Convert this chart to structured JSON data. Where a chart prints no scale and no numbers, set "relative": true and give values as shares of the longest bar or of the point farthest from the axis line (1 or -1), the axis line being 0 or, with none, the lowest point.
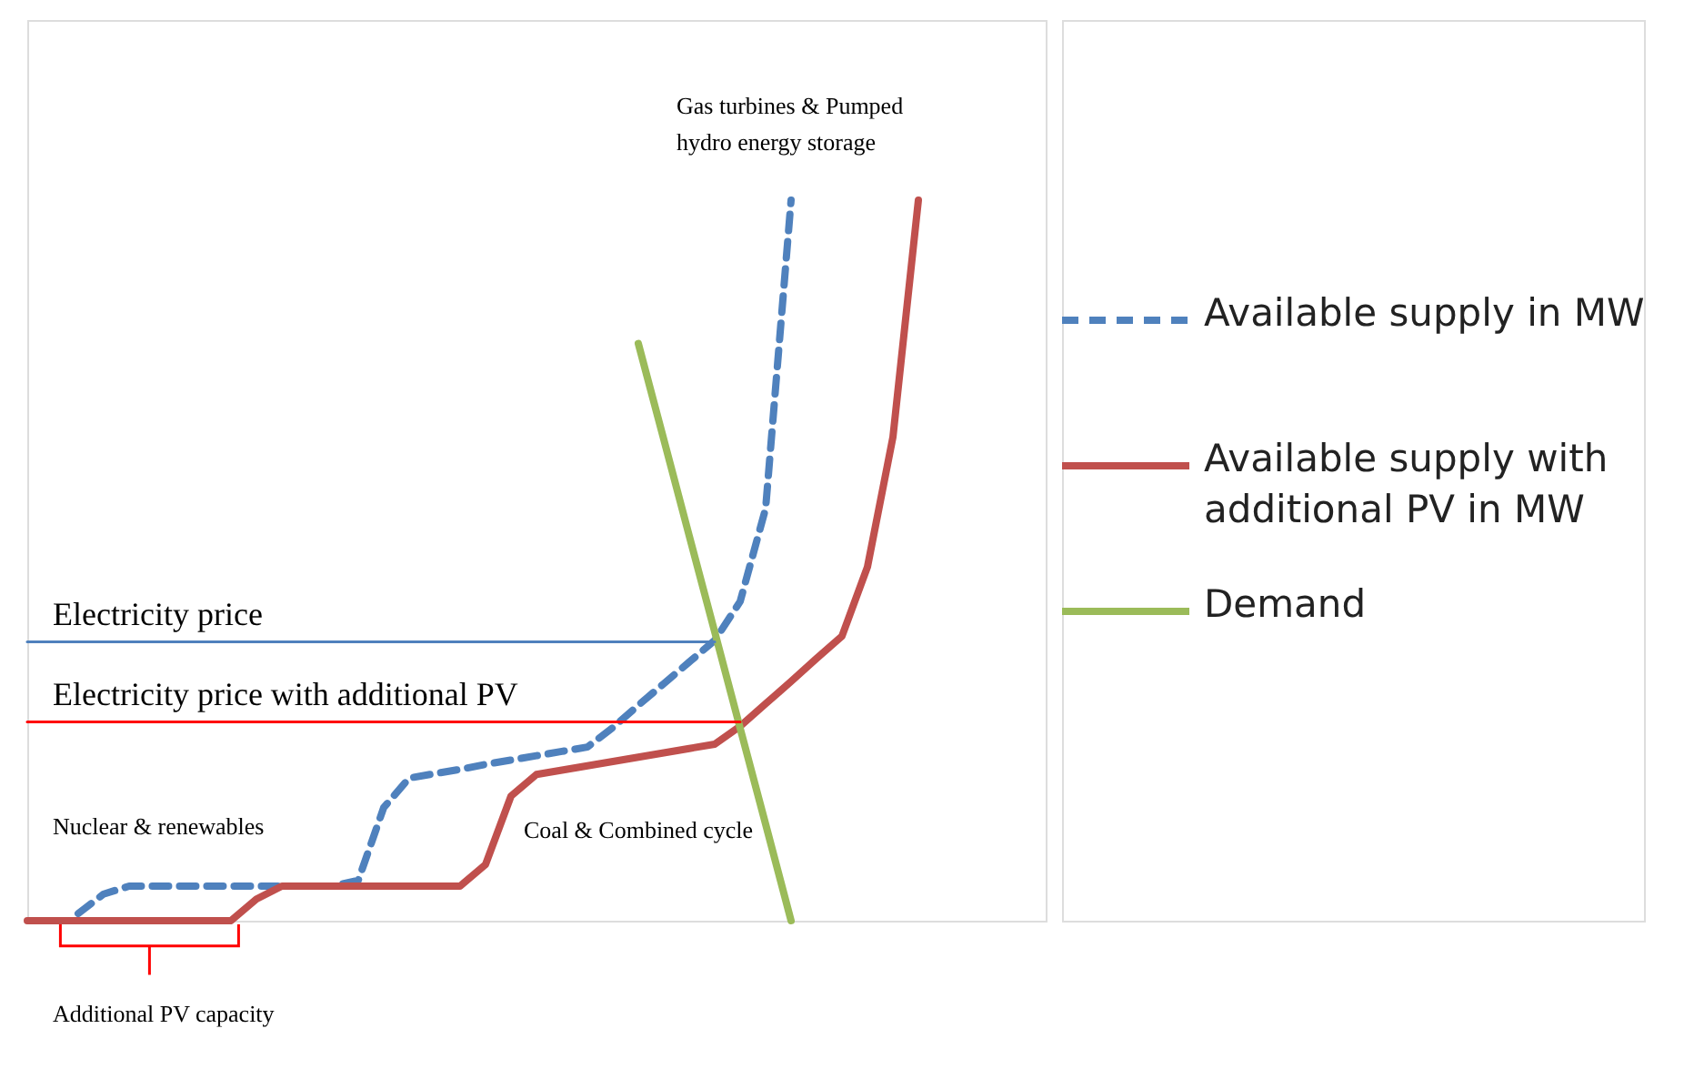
{
  "chart_data": {
    "type": "line",
    "relative": true,
    "tick_labels": false,
    "grid": false,
    "legend": "right",
    "marker": "none",
    "categories": [
      null,
      null,
      null,
      null,
      null,
      null,
      null,
      null,
      null,
      null,
      null,
      null,
      null,
      null,
      null,
      null,
      null,
      null,
      null,
      null,
      null,
      null,
      null,
      null,
      null,
      null,
      null,
      null,
      null,
      null,
      null,
      null,
      null,
      null,
      null,
      null,
      null,
      null,
      null,
      null,
      null
    ],
    "series": [
      {
        "name": "Available supply in MW",
        "color": "#4f81bd",
        "line_style": "dashed",
        "values": [
          null,
          null,
          0.01,
          0.037,
          0.048,
          0.048,
          0.048,
          0.048,
          0.048,
          0.048,
          0.048,
          0.048,
          0.048,
          0.056,
          0.157,
          0.198,
          0.204,
          0.21,
          0.217,
          0.223,
          0.229,
          0.235,
          0.241,
          0.268,
          0.299,
          0.329,
          0.359,
          0.389,
          0.443,
          0.572,
          1,
          null,
          null,
          null,
          null,
          null,
          null,
          null,
          null,
          null,
          null
        ]
      },
      {
        "name": "Available supply with additional PV in MW",
        "color": "#c0504d",
        "line_style": "solid",
        "values": [
          0,
          0,
          0,
          0,
          0,
          0,
          0,
          0,
          0,
          0.03,
          0.048,
          0.048,
          0.048,
          0.048,
          0.048,
          0.048,
          0.048,
          0.048,
          0.078,
          0.173,
          0.203,
          0.209,
          0.215,
          0.221,
          0.227,
          0.233,
          0.239,
          0.245,
          0.27,
          0.301,
          0.332,
          0.364,
          0.395,
          0.491,
          0.671,
          1,
          null,
          null,
          null,
          null,
          null
        ]
      },
      {
        "name": "Demand",
        "color": "#9bbb59",
        "line_style": "solid",
        "values": [
          null,
          null,
          null,
          null,
          null,
          null,
          null,
          null,
          null,
          null,
          null,
          null,
          null,
          null,
          null,
          null,
          null,
          null,
          null,
          null,
          null,
          null,
          null,
          null,
          0.801,
          0.668,
          0.534,
          0.401,
          0.267,
          0.134,
          0,
          null,
          null,
          null,
          null,
          null,
          null,
          null,
          null,
          null,
          null
        ]
      },
      {
        "color": "#4f81bd",
        "line_style": "solid",
        "values": [
          0.387,
          0.387,
          0.387,
          0.387,
          0.387,
          0.387,
          0.387,
          0.387,
          0.387,
          0.387,
          0.387,
          0.387,
          0.387,
          0.387,
          0.387,
          0.387,
          0.387,
          0.387,
          0.387,
          0.387,
          0.387,
          0.387,
          0.387,
          0.387,
          0.387,
          0.387,
          0.387,
          0.387,
          null,
          null,
          null,
          null,
          null,
          null,
          null,
          null,
          null,
          null,
          null,
          null,
          null
        ]
      },
      {
        "color": "#ff0000",
        "line_style": "solid",
        "values": [
          0.276,
          0.276,
          0.276,
          0.276,
          0.276,
          0.276,
          0.276,
          0.276,
          0.276,
          0.276,
          0.276,
          0.276,
          0.276,
          0.276,
          0.276,
          0.276,
          0.276,
          0.276,
          0.276,
          0.276,
          0.276,
          0.276,
          0.276,
          0.276,
          0.276,
          0.276,
          0.276,
          0.276,
          0.276,
          null,
          null,
          null,
          null,
          null,
          null,
          null,
          null,
          null,
          null,
          null,
          null
        ]
      }
    ],
    "annotations": [
      {
        "text": "Electricity price",
        "y": 0.387
      },
      {
        "text": "Electricity price with additional PV",
        "y": 0.276
      },
      "Gas turbines & Pumped hydro energy storage",
      "Nuclear & renewables",
      "Coal & Combined cycle",
      "Additional PV capacity"
    ]
  }
}
